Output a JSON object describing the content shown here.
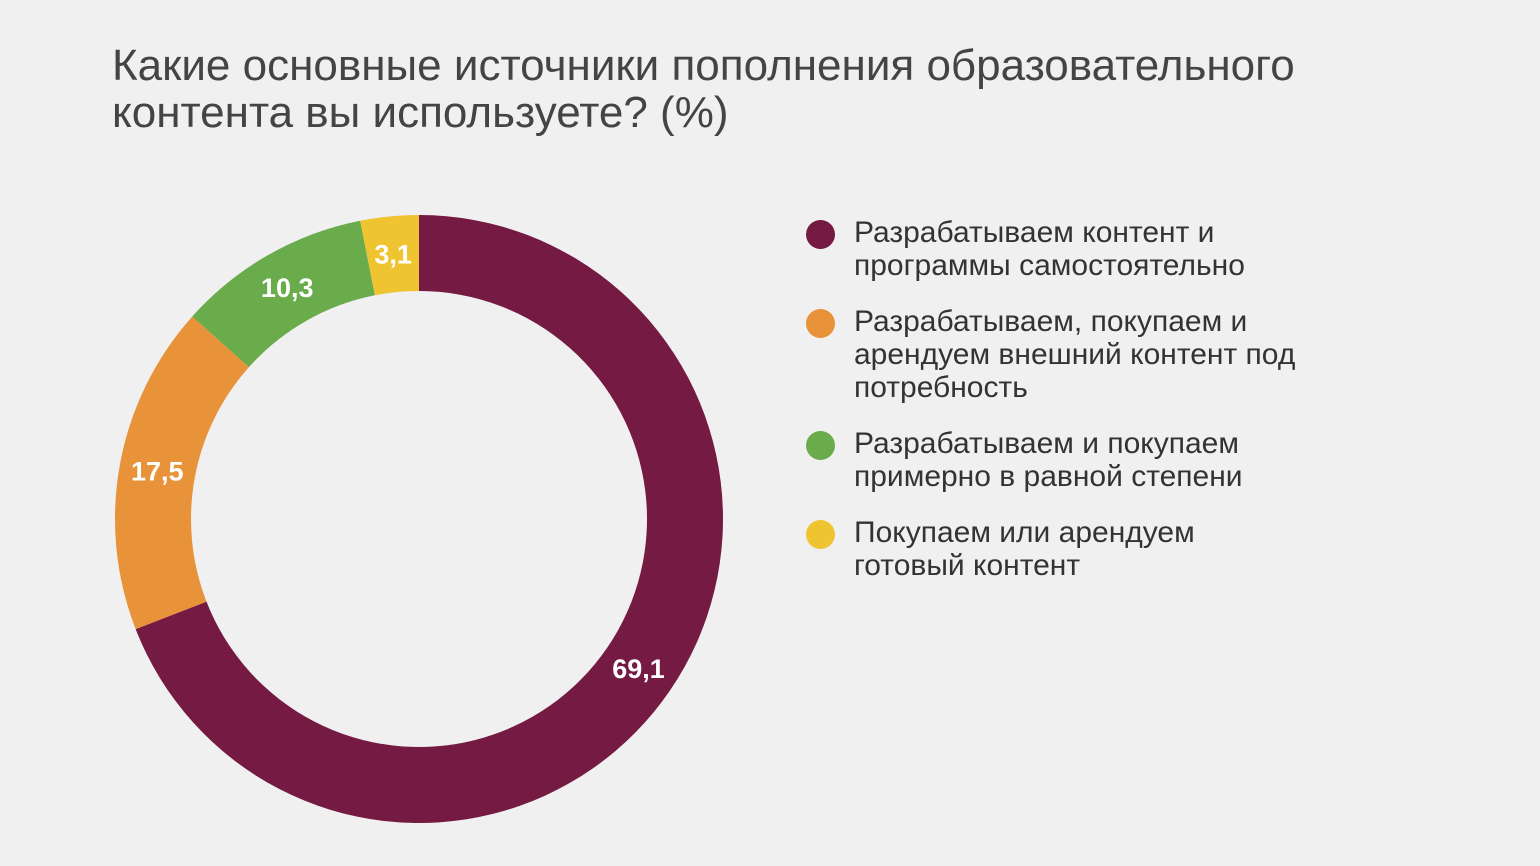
{
  "chart_data": {
    "type": "pie",
    "variant": "donut",
    "title": "Какие основные источники пополнения образовательного контента вы используете? (%)",
    "categories": [
      "Разрабатываем контент и программы самостоятельно",
      "Разрабатываем, покупаем и арендуем внешний контент под потребность",
      "Разрабатываем и покупаем примерно в равной степени",
      "Покупаем или арендуем готовый контент"
    ],
    "values": [
      69.1,
      17.5,
      10.3,
      3.1
    ],
    "value_labels": [
      "69,1",
      "17,5",
      "10,3",
      "3,1"
    ],
    "colors": [
      "#741a43",
      "#e8923a",
      "#6aab4b",
      "#f0c431"
    ],
    "legend_position": "right"
  }
}
